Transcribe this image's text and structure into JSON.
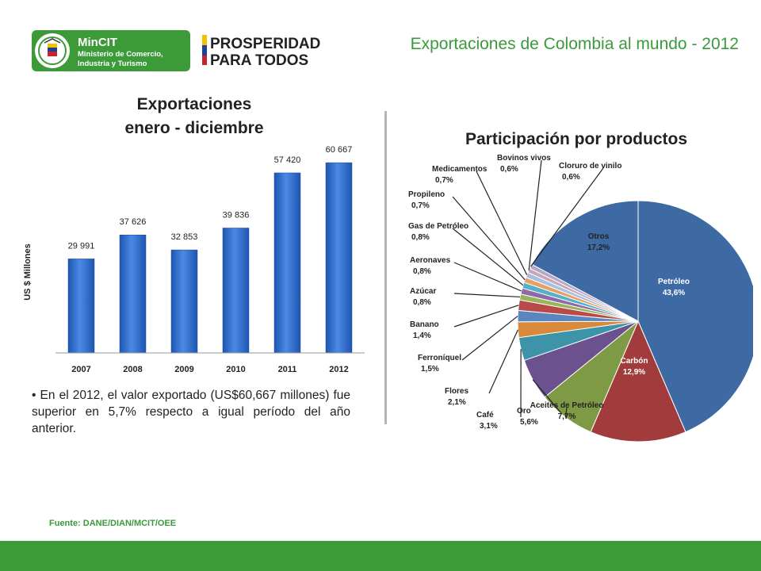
{
  "header": {
    "title": "Exportaciones de Colombia al mundo - 2012",
    "mincit_logo": {
      "name": "MinCIT",
      "line1": "Ministerio de Comercio,",
      "line2": "Industria y Turismo",
      "seal": "colombia-seal-icon"
    },
    "prosperidad_logo": {
      "line1": "PROSPERIDAD",
      "line2": "PARA TODOS"
    }
  },
  "summary": {
    "bullet": "•",
    "text": "En el 2012, el valor exportado (US$60,667 millones) fue superior en 5,7% respecto a igual período del año anterior."
  },
  "source": "Fuente: DANE/DIAN/MCIT/OEE",
  "colors": {
    "green": "#3a9a3a",
    "bar": "#2f6fcf",
    "slices": [
      "#3e6aa3",
      "#a23b3b",
      "#7f9a44",
      "#6b528e",
      "#3d94a8",
      "#d88a3a",
      "#5a86c0",
      "#b84a4a",
      "#9ab45a",
      "#8a6aa8",
      "#58b0c8",
      "#e8a060",
      "#a8c0e0",
      "#c8a8b8",
      "#b4a8c8"
    ]
  },
  "chart_data": [
    {
      "type": "bar",
      "title_line1": "Exportaciones",
      "title_line2": "enero - diciembre",
      "ylabel": "US $ Millones",
      "categories": [
        "2007",
        "2008",
        "2009",
        "2010",
        "2011",
        "2012"
      ],
      "values": [
        29991,
        37626,
        32853,
        39836,
        57420,
        60667
      ],
      "value_labels": [
        "29 991",
        "37 626",
        "32 853",
        "39 836",
        "57 420",
        "60 667"
      ],
      "ylim": [
        0,
        65000
      ],
      "grid": false
    },
    {
      "type": "pie",
      "title": "Participación por productos",
      "slices": [
        {
          "name": "Petróleo",
          "label": "43,6%",
          "value": 43.6
        },
        {
          "name": "Carbón",
          "label": "12,9%",
          "value": 12.9
        },
        {
          "name": "Aceites de Petróleo",
          "label": "7,7%",
          "value": 7.7
        },
        {
          "name": "Oro",
          "label": "5,6%",
          "value": 5.6
        },
        {
          "name": "Café",
          "label": "3,1%",
          "value": 3.1
        },
        {
          "name": "Flores",
          "label": "2,1%",
          "value": 2.1
        },
        {
          "name": "Ferroníquel",
          "label": "1,5%",
          "value": 1.5
        },
        {
          "name": "Banano",
          "label": "1,4%",
          "value": 1.4
        },
        {
          "name": "Azúcar",
          "label": "0,8%",
          "value": 0.8
        },
        {
          "name": "Aeronaves",
          "label": "0,8%",
          "value": 0.8
        },
        {
          "name": "Gas de Petróleo",
          "label": "0,8%",
          "value": 0.8
        },
        {
          "name": "Propileno",
          "label": "0,7%",
          "value": 0.7
        },
        {
          "name": "Medicamentos",
          "label": "0,7%",
          "value": 0.7
        },
        {
          "name": "Bovinos vivos",
          "label": "0,6%",
          "value": 0.6
        },
        {
          "name": "Cloruro de vinilo",
          "label": "0,6%",
          "value": 0.6
        },
        {
          "name": "Otros",
          "label": "17,2%",
          "value": 17.2
        }
      ]
    }
  ]
}
